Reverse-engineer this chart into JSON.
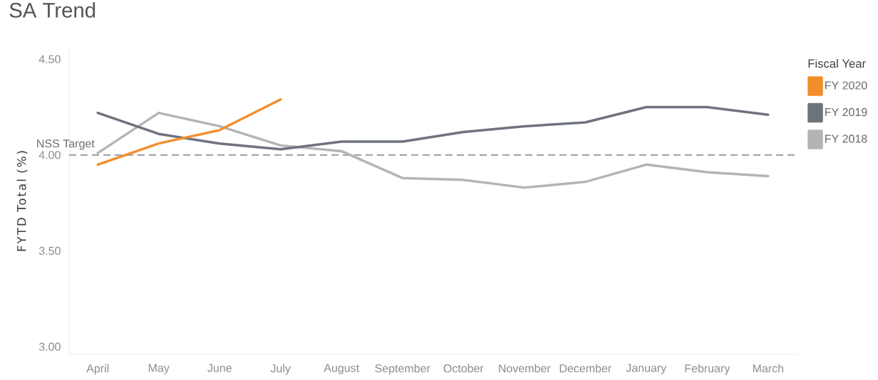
{
  "chart_data": {
    "type": "line",
    "title": "SA Trend",
    "ylabel": "FYTD Total (%)",
    "legend_title": "Fiscal Year",
    "categories": [
      "April",
      "May",
      "June",
      "July",
      "August",
      "September",
      "October",
      "November",
      "December",
      "January",
      "February",
      "March"
    ],
    "series": [
      {
        "name": "FY 2020",
        "color": "#f28e2b",
        "values": [
          3.95,
          4.06,
          4.13,
          4.29,
          null,
          null,
          null,
          null,
          null,
          null,
          null,
          null
        ]
      },
      {
        "name": "FY 2019",
        "color": "#6e737e",
        "values": [
          4.22,
          4.11,
          4.06,
          4.03,
          4.07,
          4.07,
          4.12,
          4.15,
          4.17,
          4.25,
          4.25,
          4.21
        ]
      },
      {
        "name": "FY 2018",
        "color": "#b4b4b4",
        "values": [
          4.01,
          4.22,
          4.15,
          4.05,
          4.02,
          3.88,
          3.87,
          3.83,
          3.86,
          3.95,
          3.91,
          3.89
        ]
      }
    ],
    "ylim": [
      2.96,
      4.56
    ],
    "yticks": [
      {
        "value": 3,
        "label": "3.00"
      },
      {
        "value": 3.5,
        "label": "3.50"
      },
      {
        "value": 4,
        "label": "4.00"
      },
      {
        "value": 4.5,
        "label": "4.50"
      }
    ],
    "ref_lines": [
      {
        "axis": "y",
        "value": 4,
        "label": "NSS Target",
        "color": "#a6a6a6",
        "line_style": "dashed"
      }
    ],
    "legend": "top right",
    "grid": false,
    "marker": "none",
    "line_style": "solid"
  }
}
